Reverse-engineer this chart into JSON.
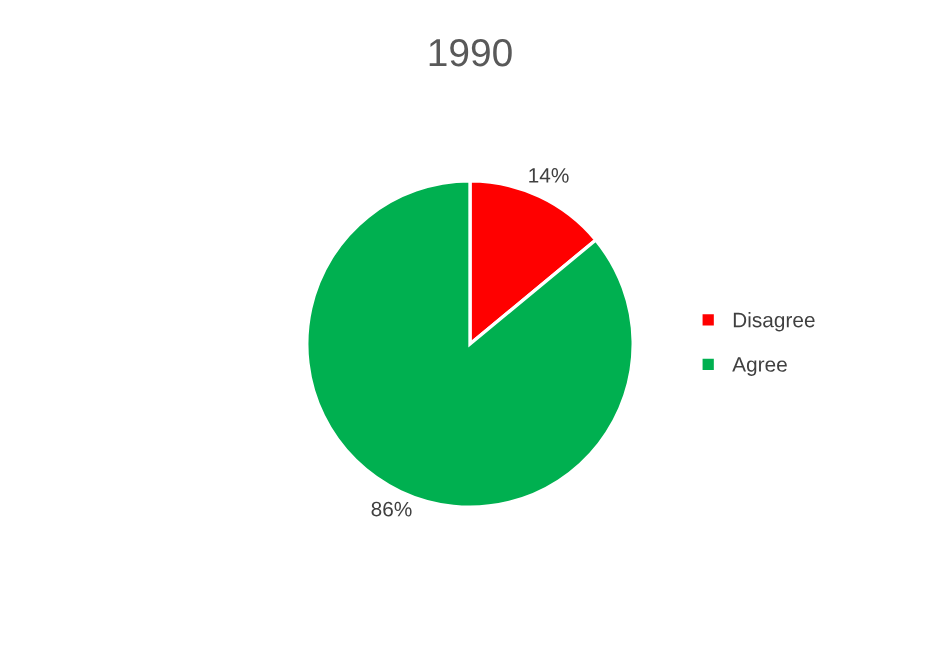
{
  "chart_data": {
    "type": "pie",
    "title": "1990",
    "categories": [
      "Disagree",
      "Agree"
    ],
    "values": [
      14,
      86
    ],
    "colors": [
      "#ff0000",
      "#00b050"
    ],
    "value_labels": [
      "14%",
      "86%"
    ],
    "legend": "right"
  }
}
